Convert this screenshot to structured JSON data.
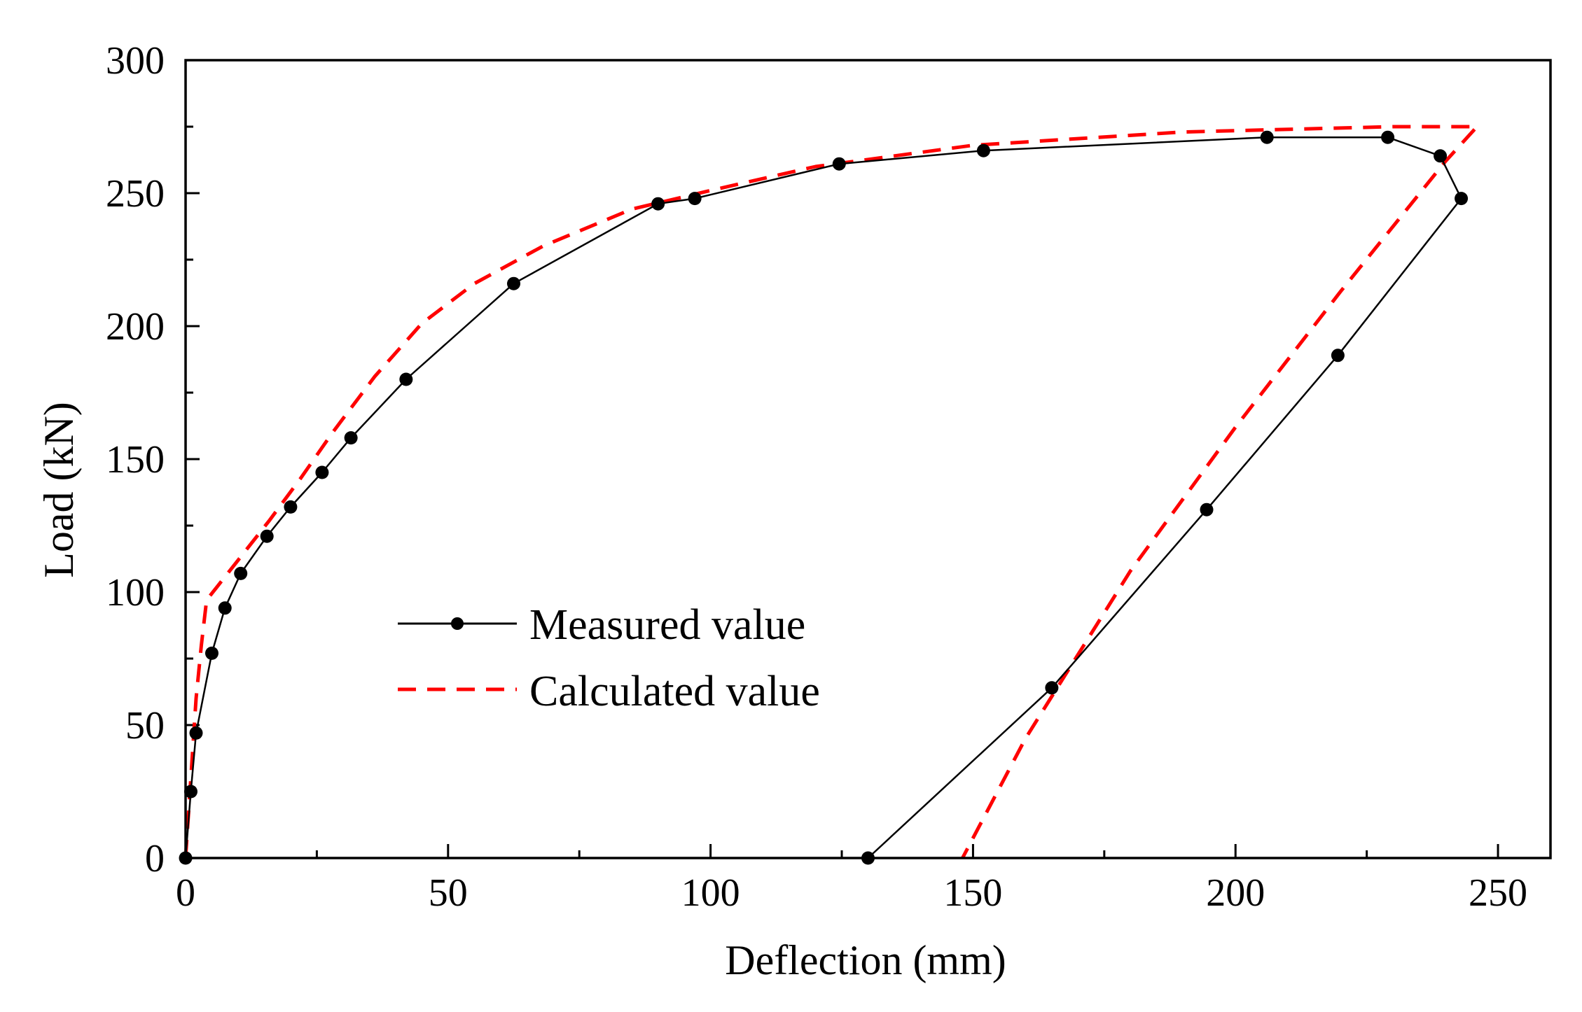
{
  "chart_data": {
    "type": "line",
    "title": "",
    "xlabel": "Deflection (mm)",
    "ylabel": "Load (kN)",
    "xlim": [
      0,
      260
    ],
    "ylim": [
      0,
      300
    ],
    "x_ticks": [
      0,
      50,
      100,
      150,
      200,
      250
    ],
    "y_ticks": [
      0,
      50,
      100,
      150,
      200,
      250,
      300
    ],
    "x_minor_step": 25,
    "y_minor_step": 25,
    "grid": false,
    "legend_position": "center-left",
    "series": [
      {
        "name": "Measured value",
        "color": "#000000",
        "style": "solid",
        "markers": true,
        "x": [
          0,
          1,
          2,
          5,
          7.5,
          10.5,
          15.5,
          20,
          26,
          31.5,
          42,
          62.5,
          90,
          97,
          124.5,
          152,
          206,
          229,
          239,
          243,
          219.5,
          194.5,
          165,
          130
        ],
        "y": [
          0,
          25,
          47,
          77,
          94,
          107,
          121,
          132,
          145,
          158,
          180,
          216,
          246,
          248,
          261,
          266,
          271,
          271,
          264,
          248,
          189,
          131,
          64,
          0
        ]
      },
      {
        "name": "Calculated value",
        "color": "#ff0000",
        "style": "dashed",
        "markers": false,
        "x": [
          0,
          1,
          2,
          3,
          4,
          6,
          10,
          16,
          22,
          28,
          36,
          45,
          55,
          68,
          85,
          100,
          120,
          150,
          190,
          230,
          246,
          240,
          220,
          200,
          180,
          160,
          148
        ],
        "y": [
          0,
          30,
          60,
          80,
          97,
          102,
          112,
          127,
          143,
          160,
          181,
          201,
          216,
          230,
          244,
          251,
          260,
          268,
          273,
          275,
          275,
          262,
          213,
          162,
          108,
          45,
          0
        ]
      }
    ]
  }
}
